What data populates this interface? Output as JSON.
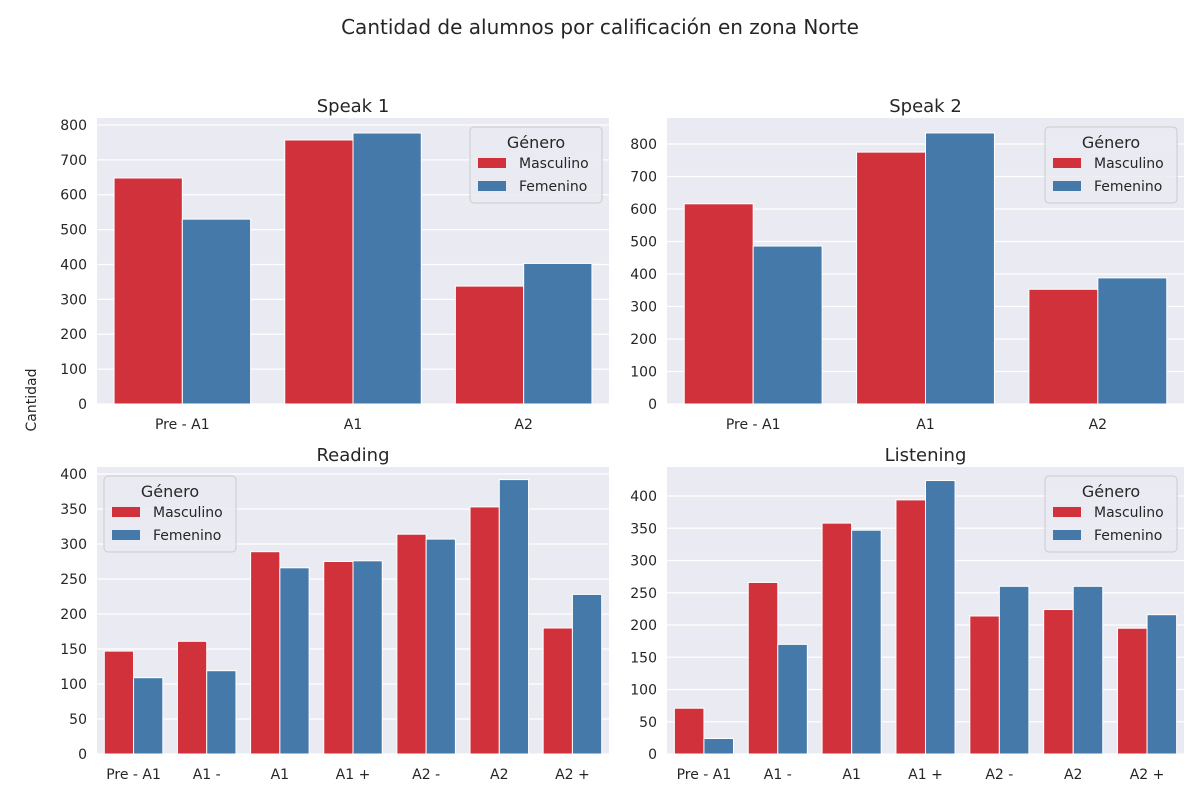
{
  "title": "Cantidad de alumnos por calificación en zona Norte",
  "ylabel": "Cantidad",
  "colors": {
    "Masculino": "#d1313a",
    "Femenino": "#4479a9",
    "background": "#eaeaf2",
    "grid": "#ffffff"
  },
  "chart_data": [
    {
      "type": "bar",
      "title": "Speak 1",
      "categories": [
        "Pre - A1",
        "A1",
        "A2"
      ],
      "series": [
        {
          "name": "Masculino",
          "values": [
            648,
            757,
            338
          ]
        },
        {
          "name": "Femenino",
          "values": [
            530,
            777,
            403
          ]
        }
      ],
      "ylim": [
        0,
        820
      ],
      "yticks": [
        0,
        100,
        200,
        300,
        400,
        500,
        600,
        700,
        800
      ],
      "legend": {
        "title": "Género",
        "position": "top-right"
      }
    },
    {
      "type": "bar",
      "title": "Speak 2",
      "categories": [
        "Pre - A1",
        "A1",
        "A2"
      ],
      "series": [
        {
          "name": "Masculino",
          "values": [
            616,
            775,
            353
          ]
        },
        {
          "name": "Femenino",
          "values": [
            486,
            834,
            388
          ]
        }
      ],
      "ylim": [
        0,
        880
      ],
      "yticks": [
        0,
        100,
        200,
        300,
        400,
        500,
        600,
        700,
        800
      ],
      "legend": {
        "title": "Género",
        "position": "top-right"
      }
    },
    {
      "type": "bar",
      "title": "Reading",
      "categories": [
        "Pre - A1",
        "A1 -",
        "A1",
        "A1 +",
        "A2 -",
        "A2",
        "A2 +"
      ],
      "series": [
        {
          "name": "Masculino",
          "values": [
            147,
            161,
            289,
            275,
            314,
            353,
            180
          ]
        },
        {
          "name": "Femenino",
          "values": [
            109,
            119,
            266,
            276,
            307,
            392,
            228
          ]
        }
      ],
      "ylim": [
        0,
        410
      ],
      "yticks": [
        0,
        50,
        100,
        150,
        200,
        250,
        300,
        350,
        400
      ],
      "legend": {
        "title": "Género",
        "position": "top-left"
      }
    },
    {
      "type": "bar",
      "title": "Listening",
      "categories": [
        "Pre - A1",
        "A1 -",
        "A1",
        "A1 +",
        "A2 -",
        "A2",
        "A2 +"
      ],
      "series": [
        {
          "name": "Masculino",
          "values": [
            71,
            266,
            358,
            394,
            214,
            224,
            195
          ]
        },
        {
          "name": "Femenino",
          "values": [
            24,
            170,
            347,
            424,
            260,
            260,
            216
          ]
        }
      ],
      "ylim": [
        0,
        445
      ],
      "yticks": [
        0,
        50,
        100,
        150,
        200,
        250,
        300,
        350,
        400
      ],
      "legend": {
        "title": "Género",
        "position": "top-right"
      }
    }
  ]
}
